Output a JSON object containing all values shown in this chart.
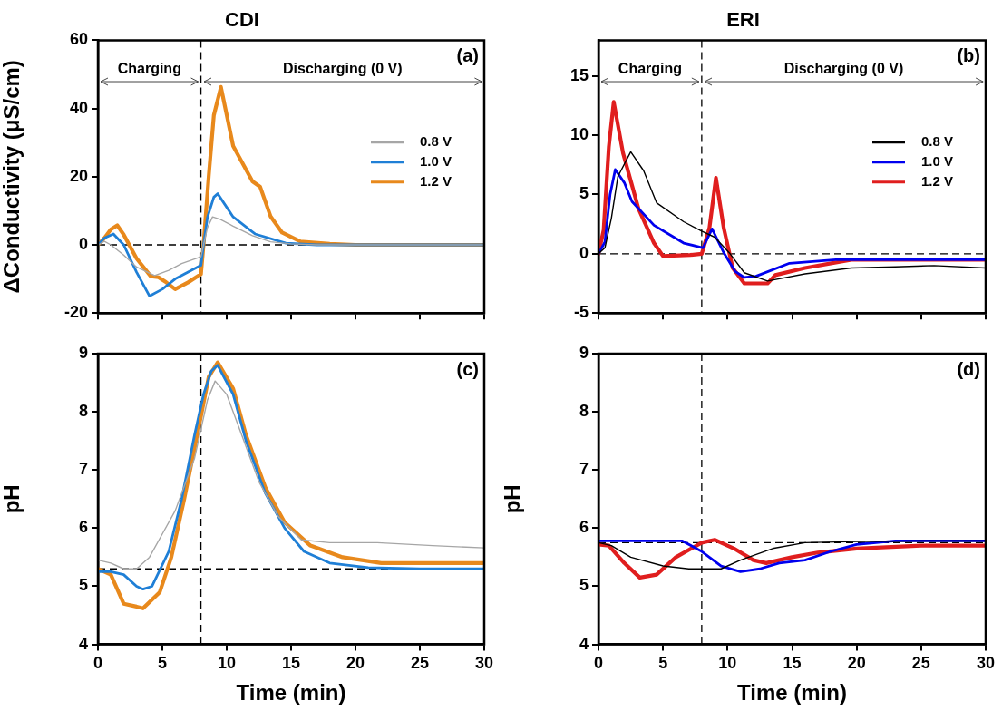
{
  "chart_data": [
    {
      "type": "line",
      "title": "CDI",
      "ylabel": "ΔConductivity (μS/cm)",
      "xlim": [
        0,
        30
      ],
      "xticks": [
        0,
        5,
        10,
        15,
        20,
        25,
        30
      ],
      "ylim": [
        -20,
        60
      ],
      "yticks": [
        -20,
        0,
        20,
        40,
        60
      ],
      "tick_labels": "y",
      "legend": "right",
      "marker": "none",
      "line_style": "solid",
      "annotations": [
        "Charging",
        "Discharging (0 V)",
        "(a)"
      ],
      "ref_lines": [
        {
          "axis": "x",
          "value": 8
        },
        {
          "axis": "y",
          "value": 0
        }
      ],
      "series": [
        {
          "name": "0.8 V",
          "color": "#a6a6a6",
          "x": [
            0,
            0.5,
            1,
            2,
            3,
            4.4,
            5.5,
            6.5,
            8,
            8.2,
            8.5,
            8.9,
            9.5,
            10.5,
            12,
            13.4,
            15,
            17,
            20,
            25,
            30
          ],
          "values": [
            0,
            1,
            0,
            -3,
            -6.5,
            -9,
            -7.5,
            -5.5,
            -3.5,
            0,
            5,
            8.2,
            7.5,
            5.5,
            2.7,
            0.9,
            0.3,
            0,
            0,
            0,
            0
          ]
        },
        {
          "name": "1.0 V",
          "color": "#1f7fd6",
          "x": [
            0,
            0.5,
            1.2,
            2,
            3,
            4,
            5,
            6,
            7,
            8,
            8.2,
            8.5,
            9,
            9.3,
            10.5,
            12.2,
            14.6,
            17,
            20,
            25,
            30
          ],
          "values": [
            0,
            2,
            3.2,
            0,
            -8,
            -15,
            -13,
            -10,
            -8,
            -6,
            0,
            8,
            14,
            15,
            8.2,
            3.2,
            0.5,
            0,
            0,
            0,
            0
          ]
        },
        {
          "name": "1.2 V",
          "color": "#e8891c",
          "x": [
            0,
            0.5,
            1,
            1.5,
            2,
            3,
            4.1,
            4.7,
            5.3,
            6,
            7,
            8,
            8.2,
            8.6,
            9,
            9.55,
            10.5,
            12,
            12.6,
            13.4,
            14.3,
            15.7,
            18,
            20,
            25,
            30
          ],
          "values": [
            0,
            2,
            4.5,
            5.7,
            3,
            -4,
            -9.2,
            -9.5,
            -11,
            -13,
            -11,
            -8.6,
            0,
            20,
            38,
            46.3,
            29,
            18.6,
            17,
            8.4,
            3.6,
            1,
            0.3,
            0,
            0,
            0
          ]
        }
      ]
    },
    {
      "type": "line",
      "title": "ERI",
      "xlim": [
        0,
        30
      ],
      "xticks": [
        0,
        5,
        10,
        15,
        20,
        25,
        30
      ],
      "ylim": [
        -5,
        18
      ],
      "yticks": [
        -5,
        0,
        5,
        10,
        15
      ],
      "tick_labels": "y",
      "legend": "right",
      "marker": "none",
      "line_style": "solid",
      "annotations": [
        "Charging",
        "Discharging (0 V)",
        "(b)"
      ],
      "ref_lines": [
        {
          "axis": "x",
          "value": 8
        },
        {
          "axis": "y",
          "value": 0
        }
      ],
      "series": [
        {
          "name": "0.8 V",
          "color": "#000000",
          "x": [
            0,
            0.5,
            1,
            1.5,
            2.5,
            3.5,
            4.5,
            6.6,
            8,
            9,
            10.2,
            11.3,
            13.1,
            16,
            19.6,
            23,
            26,
            30
          ],
          "values": [
            0,
            0.5,
            3,
            6.5,
            8.6,
            7,
            4.3,
            2.7,
            1.9,
            1.4,
            0,
            -1.6,
            -2.3,
            -1.7,
            -1.2,
            -1.1,
            -1,
            -1.2
          ]
        },
        {
          "name": "1.0 V",
          "color": "#0000ee",
          "x": [
            0,
            0.5,
            0.9,
            1.3,
            2,
            2.6,
            4.3,
            6.6,
            8.1,
            8.8,
            9.7,
            10.6,
            11.3,
            12.2,
            14.8,
            18.4,
            22,
            26,
            30
          ],
          "values": [
            0,
            1,
            5,
            7.1,
            6,
            4.4,
            2.4,
            0.9,
            0.5,
            2.1,
            0.1,
            -1.5,
            -2,
            -1.9,
            -0.8,
            -0.5,
            -0.5,
            -0.5,
            -0.5
          ]
        },
        {
          "name": "1.2 V",
          "color": "#e01e1e",
          "x": [
            0,
            0.4,
            0.8,
            1.18,
            1.9,
            3.1,
            4.3,
            5,
            7.1,
            8,
            8.6,
            9.1,
            9.7,
            10.4,
            11.3,
            13.1,
            13.7,
            16,
            19.6,
            25,
            30
          ],
          "values": [
            0,
            2,
            9,
            12.8,
            8.5,
            3.8,
            0.9,
            -0.2,
            -0.1,
            0,
            2.2,
            6.4,
            2.2,
            -1.2,
            -2.5,
            -2.5,
            -1.8,
            -1.2,
            -0.5,
            -0.5,
            -0.5
          ]
        }
      ]
    },
    {
      "type": "line",
      "xlabel": "Time (min)",
      "ylabel": "pH",
      "xlim": [
        0,
        30
      ],
      "xticks": [
        0,
        5,
        10,
        15,
        20,
        25,
        30
      ],
      "ylim": [
        4,
        9
      ],
      "yticks": [
        4,
        5,
        6,
        7,
        8,
        9
      ],
      "marker": "none",
      "line_style": "solid",
      "annotations": [
        "(c)"
      ],
      "ref_lines": [
        {
          "axis": "x",
          "value": 8
        },
        {
          "axis": "y",
          "value": 5.3
        }
      ],
      "series": [
        {
          "color": "#a6a6a6",
          "x": [
            0,
            1,
            2,
            3,
            4,
            5,
            6,
            7.5,
            8.5,
            9.1,
            10,
            11,
            12.5,
            14,
            15.8,
            18,
            21.7,
            26,
            30
          ],
          "values": [
            5.45,
            5.4,
            5.3,
            5.3,
            5.5,
            5.9,
            6.3,
            7.2,
            8.2,
            8.53,
            8.3,
            7.7,
            6.8,
            6.2,
            5.8,
            5.75,
            5.75,
            5.7,
            5.66
          ]
        },
        {
          "color": "#1f7fd6",
          "x": [
            0,
            1,
            2,
            3,
            3.5,
            4.2,
            5.5,
            6.5,
            7.5,
            8.2,
            8.8,
            9.3,
            10.5,
            11.5,
            13,
            14.5,
            16,
            18,
            21,
            25,
            30
          ],
          "values": [
            5.25,
            5.25,
            5.2,
            5.0,
            4.95,
            5.0,
            5.6,
            6.5,
            7.6,
            8.3,
            8.7,
            8.8,
            8.3,
            7.5,
            6.6,
            6.0,
            5.6,
            5.4,
            5.32,
            5.3,
            5.3
          ]
        },
        {
          "color": "#e8891c",
          "x": [
            0,
            1,
            2,
            3,
            3.5,
            4.8,
            5.7,
            6.7,
            7.8,
            8.6,
            9.3,
            10.5,
            11.5,
            13,
            14.5,
            16.5,
            19,
            22,
            26,
            30
          ],
          "values": [
            5.3,
            5.2,
            4.7,
            4.65,
            4.62,
            4.9,
            5.5,
            6.5,
            7.7,
            8.6,
            8.85,
            8.4,
            7.6,
            6.7,
            6.1,
            5.7,
            5.5,
            5.4,
            5.4,
            5.4
          ]
        }
      ]
    },
    {
      "type": "line",
      "xlabel": "Time (min)",
      "ylabel": "pH",
      "xlim": [
        0,
        30
      ],
      "xticks": [
        0,
        5,
        10,
        15,
        20,
        25,
        30
      ],
      "ylim": [
        4,
        9
      ],
      "yticks": [
        4,
        5,
        6,
        7,
        8,
        9
      ],
      "marker": "none",
      "line_style": "solid",
      "annotations": [
        "(d)"
      ],
      "ref_lines": [
        {
          "axis": "x",
          "value": 8
        },
        {
          "axis": "y",
          "value": 5.75
        }
      ],
      "series": [
        {
          "color": "#000000",
          "x": [
            0,
            1,
            2.5,
            5,
            7,
            8,
            9.5,
            11,
            13.5,
            16,
            20,
            25,
            30
          ],
          "values": [
            5.75,
            5.7,
            5.5,
            5.35,
            5.3,
            5.3,
            5.3,
            5.45,
            5.65,
            5.75,
            5.77,
            5.78,
            5.78
          ]
        },
        {
          "color": "#0000ee",
          "x": [
            0,
            3,
            6.5,
            8,
            9.5,
            11,
            12.5,
            14,
            16,
            18,
            20,
            23,
            30
          ],
          "values": [
            5.78,
            5.78,
            5.78,
            5.6,
            5.35,
            5.25,
            5.3,
            5.4,
            5.45,
            5.6,
            5.72,
            5.78,
            5.78
          ]
        },
        {
          "color": "#e01e1e",
          "x": [
            0,
            0.8,
            2,
            3.2,
            4.5,
            6,
            8,
            9,
            10.5,
            12,
            13,
            15,
            17,
            20,
            25,
            30
          ],
          "values": [
            5.72,
            5.7,
            5.4,
            5.15,
            5.2,
            5.5,
            5.75,
            5.8,
            5.65,
            5.45,
            5.4,
            5.5,
            5.58,
            5.65,
            5.7,
            5.7
          ]
        }
      ]
    }
  ]
}
